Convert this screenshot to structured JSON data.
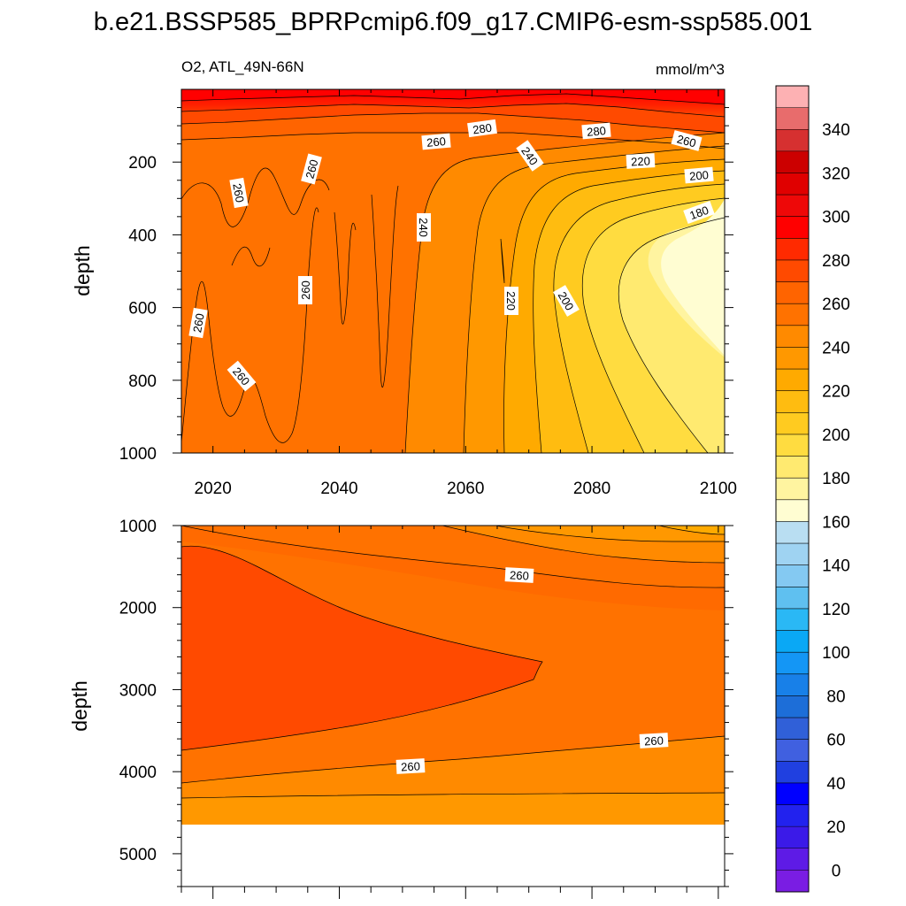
{
  "title": "b.e21.BSSP585_BPRPcmip6.f09_g17.CMIP6-esm-ssp585.001",
  "subtitle_left": "O2, ATL_49N-66N",
  "subtitle_right": "mmol/m^3",
  "chart_data": [
    {
      "type": "heatmap",
      "panel": "upper",
      "variable": "O2",
      "region": "ATL_49N-66N",
      "units": "mmol/m^3",
      "xlabel": "",
      "ylabel": "depth",
      "xlim": [
        2015,
        2101
      ],
      "ylim": [
        1000,
        0
      ],
      "xticks": [
        2020,
        2040,
        2060,
        2080,
        2100
      ],
      "xtick_labels": [
        "2020",
        "2040",
        "2060",
        "2080",
        "2100"
      ],
      "yticks": [
        200,
        400,
        600,
        800,
        1000
      ],
      "ytick_labels": [
        "200",
        "400",
        "600",
        "800",
        "1000"
      ],
      "contour_labels": [
        {
          "text": "280",
          "x": 2060,
          "y": 95
        },
        {
          "text": "260",
          "x": 2052,
          "y": 140
        },
        {
          "text": "280",
          "x": 2080,
          "y": 95
        },
        {
          "text": "260",
          "x": 2094,
          "y": 140
        },
        {
          "text": "240",
          "x": 2070,
          "y": 180
        },
        {
          "text": "220",
          "x": 2087,
          "y": 185
        },
        {
          "text": "200",
          "x": 2096,
          "y": 220
        },
        {
          "text": "180",
          "x": 2096,
          "y": 330
        },
        {
          "text": "260",
          "x": 2024,
          "y": 300
        },
        {
          "text": "260",
          "x": 2034,
          "y": 230
        },
        {
          "text": "240",
          "x": 2055,
          "y": 410
        },
        {
          "text": "260",
          "x": 2035,
          "y": 580
        },
        {
          "text": "220",
          "x": 2068,
          "y": 620
        },
        {
          "text": "200",
          "x": 2076,
          "y": 620
        },
        {
          "text": "260",
          "x": 2017,
          "y": 680
        },
        {
          "text": "260",
          "x": 2024,
          "y": 810
        }
      ]
    },
    {
      "type": "heatmap",
      "panel": "lower",
      "variable": "O2",
      "units": "mmol/m^3",
      "xlabel": "",
      "ylabel": "depth",
      "xlim": [
        2015,
        2101
      ],
      "ylim": [
        5400,
        1000
      ],
      "yticks": [
        1000,
        2000,
        3000,
        4000,
        5000
      ],
      "ytick_labels": [
        "1000",
        "2000",
        "3000",
        "4000",
        "5000"
      ],
      "contour_labels": [
        {
          "text": "260",
          "x": 2068,
          "y": 1600
        },
        {
          "text": "260",
          "x": 2090,
          "y": 3600
        },
        {
          "text": "260",
          "x": 2053,
          "y": 3920
        }
      ],
      "data_bottom_depth": 4600
    }
  ],
  "colorbar": {
    "labels": [
      "340",
      "320",
      "300",
      "280",
      "260",
      "240",
      "220",
      "200",
      "180",
      "160",
      "140",
      "120",
      "100",
      "80",
      "60",
      "40",
      "20",
      "0"
    ],
    "boundaries_top_to_bottom": [
      360,
      350,
      340,
      330,
      320,
      310,
      300,
      290,
      280,
      270,
      260,
      250,
      240,
      230,
      220,
      210,
      200,
      190,
      180,
      170,
      160,
      150,
      140,
      130,
      120,
      110,
      100,
      90,
      80,
      70,
      60,
      50,
      40,
      30,
      20,
      10,
      0,
      -10
    ],
    "colors_top_to_bottom": [
      "#fdb1b3",
      "#e86c6c",
      "#d63030",
      "#cc0000",
      "#e00000",
      "#ee0808",
      "#ff0000",
      "#ff2a00",
      "#ff4a00",
      "#ff6400",
      "#ff7200",
      "#ff8a00",
      "#ff9800",
      "#ffaa00",
      "#ffbc10",
      "#ffcb20",
      "#ffdc40",
      "#ffea70",
      "#fff4a0",
      "#fffdd2",
      "#b9def2",
      "#9fd3f2",
      "#84c9f2",
      "#5fc0f0",
      "#2ab8f5",
      "#0aa8f5",
      "#1496f5",
      "#1880e8",
      "#1d6ed8",
      "#3060d8",
      "#4060e0",
      "#2040e0",
      "#0000ff",
      "#2222ee",
      "#3b1ae8",
      "#5e1be6",
      "#7a1de3",
      "#8b2ae0"
    ]
  },
  "colors": {
    "contour_line": "#000000",
    "label_box": "#ffffff"
  }
}
